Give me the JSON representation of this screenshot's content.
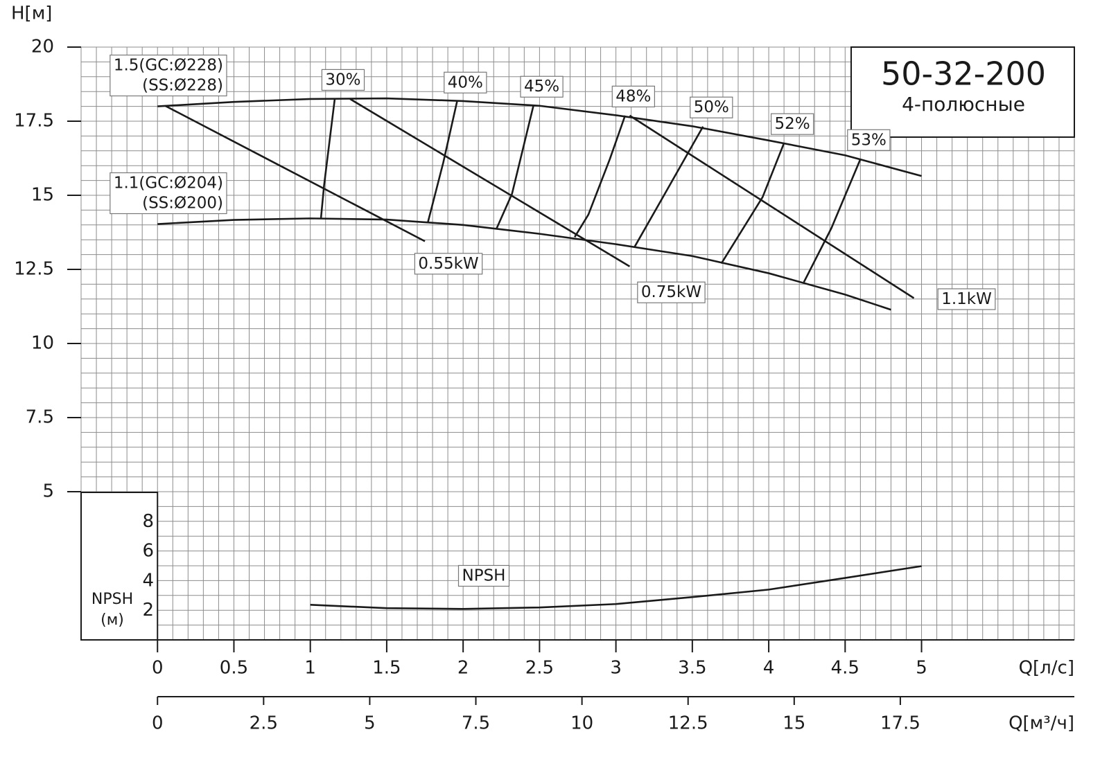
{
  "chart_data": {
    "type": "line",
    "title": "50-32-200",
    "subtitle": "4-полюсные",
    "ylabel": "H[м]",
    "xlabel": "Q[л/с]",
    "x2label": "Q[м³/ч]",
    "npsh_label": [
      "NPSH",
      "(м)"
    ],
    "xlim": [
      -0.5,
      6
    ],
    "xticks": [
      0,
      0.5,
      1,
      1.5,
      2,
      2.5,
      3,
      3.5,
      4,
      4.5,
      5
    ],
    "x2lim": [
      -1.8,
      21.6
    ],
    "x2ticks": [
      0,
      2.5,
      5,
      7.5,
      10,
      12.5,
      15,
      17.5
    ],
    "ylim": [
      0,
      20
    ],
    "yticks": [
      5,
      7.5,
      10,
      12.5,
      15,
      17.5,
      20
    ],
    "npsh_ylim": [
      0,
      10
    ],
    "npsh_yticks": [
      2,
      4,
      6,
      8
    ],
    "grid": true,
    "grid_step_x": 0.1,
    "grid_step_y": 0.5,
    "color": "#1a1a1a",
    "head_curves": [
      {
        "name": [
          "1.5(GC:Ø228)",
          "(SS:Ø228)"
        ],
        "x": [
          0,
          0.5,
          1,
          1.5,
          2,
          2.5,
          3,
          3.5,
          4,
          4.5,
          5
        ],
        "values": [
          18.0,
          18.15,
          18.25,
          18.27,
          18.18,
          18.02,
          17.7,
          17.33,
          16.85,
          16.35,
          15.65
        ]
      },
      {
        "name": [
          "1.1(GC:Ø204)",
          "(SS:Ø200)"
        ],
        "x": [
          0,
          0.5,
          1,
          1.5,
          2,
          2.5,
          3,
          3.5,
          4,
          4.5,
          4.8
        ],
        "values": [
          14.03,
          14.17,
          14.22,
          14.18,
          14.0,
          13.7,
          13.35,
          12.95,
          12.37,
          11.65,
          11.14
        ]
      }
    ],
    "power_lines": [
      {
        "name": "0.55kW",
        "x": [
          0.05,
          1.75
        ],
        "values": [
          18.02,
          13.45
        ]
      },
      {
        "name": "0.75kW",
        "x": [
          1.26,
          3.09
        ],
        "values": [
          18.25,
          12.6
        ]
      },
      {
        "name": "1.1kW",
        "x": [
          3.09,
          4.95
        ],
        "values": [
          17.69,
          11.53
        ]
      }
    ],
    "efficiency_lines": [
      {
        "name": "30%",
        "x": [
          1.16,
          1.09,
          1.07
        ],
        "values": [
          18.25,
          15.33,
          14.24
        ]
      },
      {
        "name": "40%",
        "x": [
          1.96,
          1.87,
          1.77
        ],
        "values": [
          18.16,
          16.1,
          14.1
        ]
      },
      {
        "name": "45%",
        "x": [
          2.46,
          2.32,
          2.22
        ],
        "values": [
          18.02,
          15.05,
          13.89
        ]
      },
      {
        "name": "48%",
        "x": [
          3.06,
          2.96,
          2.82,
          2.73
        ],
        "values": [
          17.69,
          16.22,
          14.35,
          13.59
        ]
      },
      {
        "name": "50%",
        "x": [
          3.57,
          3.32,
          3.12
        ],
        "values": [
          17.32,
          15.05,
          13.24
        ]
      },
      {
        "name": "52%",
        "x": [
          4.1,
          3.96,
          3.69
        ],
        "values": [
          16.76,
          14.94,
          12.7
        ]
      },
      {
        "name": "53%",
        "x": [
          4.6,
          4.41,
          4.23
        ],
        "values": [
          16.22,
          13.89,
          12.07
        ]
      }
    ],
    "npsh": {
      "name": "NPSH",
      "x": [
        1,
        1.5,
        2,
        2.5,
        3,
        3.5,
        4,
        4.5,
        5
      ],
      "values": [
        2.38,
        2.15,
        2.1,
        2.2,
        2.43,
        2.9,
        3.41,
        4.2,
        5.0
      ]
    }
  }
}
